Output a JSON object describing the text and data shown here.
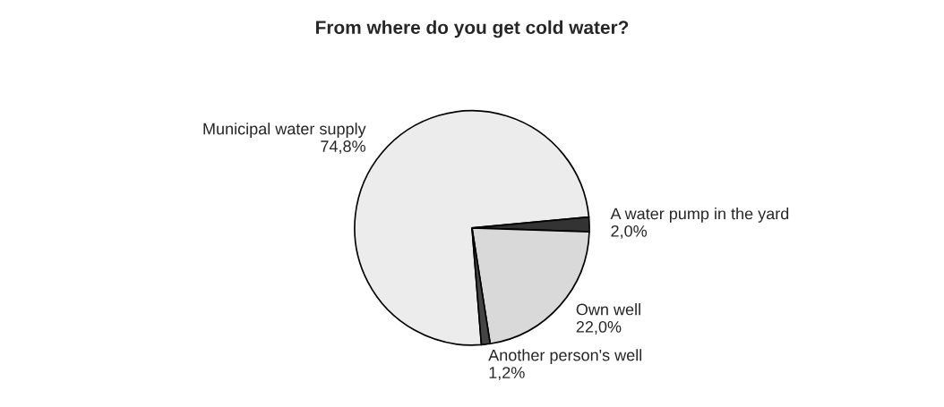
{
  "chart_data": {
    "type": "pie",
    "title": "From where do you get cold water?",
    "categories": [
      "Municipal water supply",
      "A water pump in the yard",
      "Own well",
      "Another person's well"
    ],
    "values": [
      74.8,
      2.0,
      22.0,
      1.2
    ],
    "value_labels": [
      "74,8%",
      "2,0%",
      "22,0%",
      "1,2%"
    ],
    "colors": [
      "#ececec",
      "#333333",
      "#d9d9d9",
      "#444444"
    ]
  }
}
